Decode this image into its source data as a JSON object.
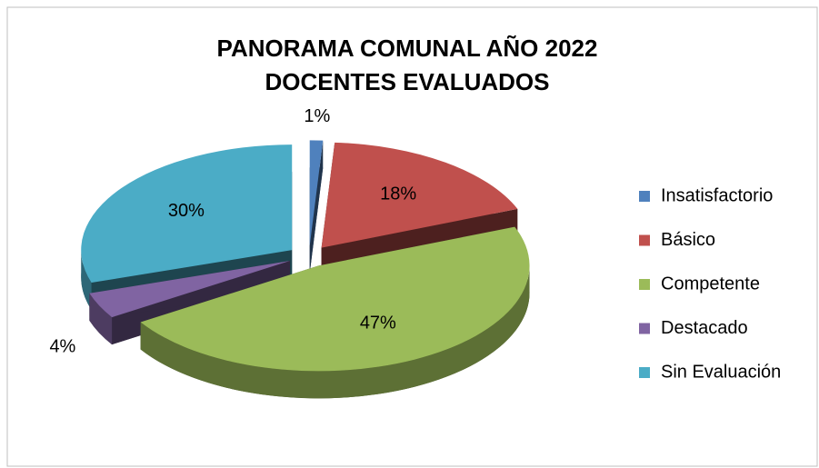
{
  "chart_data": {
    "type": "pie",
    "title": "PANORAMA COMUNAL AÑO 2022",
    "subtitle": "DOCENTES EVALUADOS",
    "categories": [
      "Insatisfactorio",
      "Básico",
      "Competente",
      "Destacado",
      "Sin Evaluación"
    ],
    "values": [
      1,
      18,
      47,
      4,
      30
    ],
    "value_labels": [
      "1%",
      "18%",
      "47%",
      "4%",
      "30%"
    ],
    "colors": [
      "#4f81bd",
      "#c0504d",
      "#9bbb59",
      "#8064a2",
      "#4bacc6"
    ],
    "legend": "right"
  }
}
